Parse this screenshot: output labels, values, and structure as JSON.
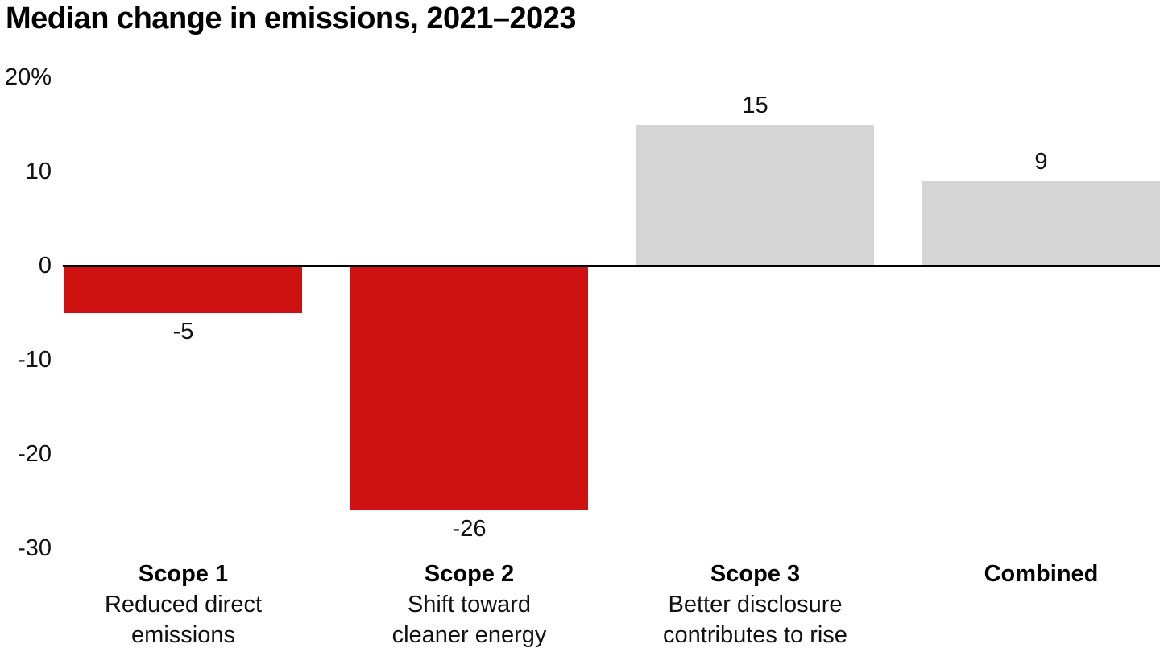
{
  "title": "Median change in emissions, 2021–2023",
  "colors": {
    "negative_bar": "#ce1111",
    "positive_bar": "#d5d5d5",
    "baseline": "#000000",
    "text": "#111111"
  },
  "chart_data": {
    "type": "bar",
    "title": "Median change in emissions, 2021–2023",
    "categories": [
      "Scope 1",
      "Scope 2",
      "Scope 3",
      "Combined"
    ],
    "subtitle_lines": [
      [
        "Reduced direct",
        "emissions"
      ],
      [
        "Shift toward",
        "cleaner energy"
      ],
      [
        "Better disclosure",
        "contributes to rise"
      ],
      []
    ],
    "values": [
      -5,
      -26,
      15,
      9
    ],
    "value_labels": [
      "-5",
      "-26",
      "15",
      "9"
    ],
    "bar_colors": [
      "negative_bar",
      "negative_bar",
      "positive_bar",
      "positive_bar"
    ],
    "unit": "%",
    "ylim": [
      -30,
      20
    ],
    "yticks": [
      {
        "value": 20,
        "label": "20%"
      },
      {
        "value": 10,
        "label": "10"
      },
      {
        "value": 0,
        "label": "0"
      },
      {
        "value": -10,
        "label": "-10"
      },
      {
        "value": -20,
        "label": "-20"
      },
      {
        "value": -30,
        "label": "-30"
      }
    ],
    "grid": false,
    "legend": false,
    "baseline_at_zero": true
  }
}
